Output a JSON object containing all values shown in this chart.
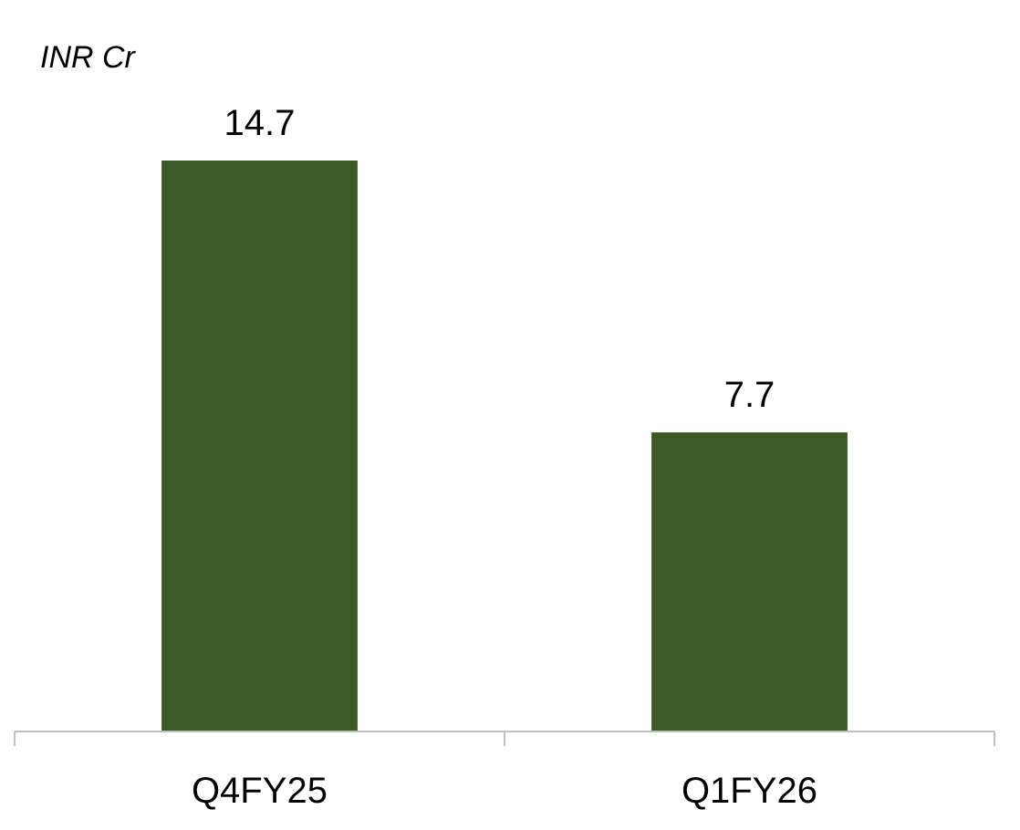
{
  "chart_data": {
    "type": "bar",
    "ylabel": "INR Cr",
    "categories": [
      "Q4FY25",
      "Q1FY26"
    ],
    "values": [
      14.7,
      7.7
    ],
    "color": "#3b5a27",
    "data_labels": true
  }
}
